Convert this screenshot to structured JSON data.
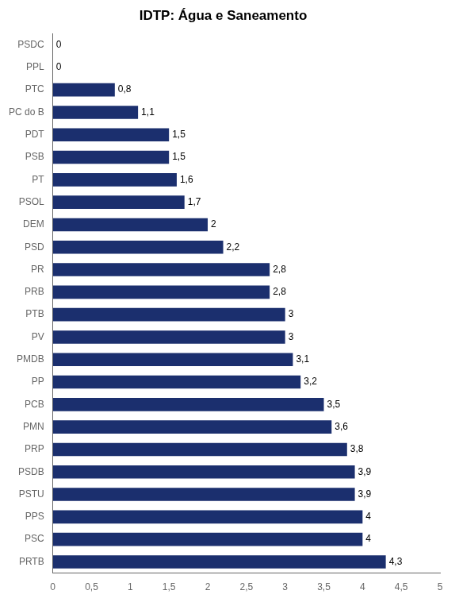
{
  "chart_data": {
    "type": "bar",
    "title": "IDTP: Água e Saneamento",
    "orientation": "horizontal",
    "categories": [
      "PSDC",
      "PPL",
      "PTC",
      "PC do B",
      "PDT",
      "PSB",
      "PT",
      "PSOL",
      "DEM",
      "PSD",
      "PR",
      "PRB",
      "PTB",
      "PV",
      "PMDB",
      "PP",
      "PCB",
      "PMN",
      "PRP",
      "PSDB",
      "PSTU",
      "PPS",
      "PSC",
      "PRTB"
    ],
    "values": [
      0,
      0,
      0.8,
      1.1,
      1.5,
      1.5,
      1.6,
      1.7,
      2.0,
      2.2,
      2.8,
      2.8,
      3.0,
      3.0,
      3.1,
      3.2,
      3.5,
      3.6,
      3.8,
      3.9,
      3.9,
      4.0,
      4.0,
      4.3
    ],
    "value_labels": [
      "0",
      "0",
      "0,8",
      "1,1",
      "1,5",
      "1,5",
      "1,6",
      "1,7",
      "2",
      "2,2",
      "2,8",
      "2,8",
      "3",
      "3",
      "3,1",
      "3,2",
      "3,5",
      "3,6",
      "3,8",
      "3,9",
      "3,9",
      "4",
      "4",
      "4,3"
    ],
    "data_labels": true,
    "color": "#1B2F6E",
    "xlim": [
      0,
      5
    ],
    "xticks": [
      0,
      {
        "value": 0.5,
        "label": "0,5"
      },
      1,
      {
        "value": 1.5,
        "label": "1,5"
      },
      2,
      {
        "value": 2.5,
        "label": "2,5"
      },
      3,
      {
        "value": 3.5,
        "label": "3,5"
      },
      4,
      {
        "value": 4.5,
        "label": "4,5"
      },
      5
    ],
    "grid": false
  }
}
